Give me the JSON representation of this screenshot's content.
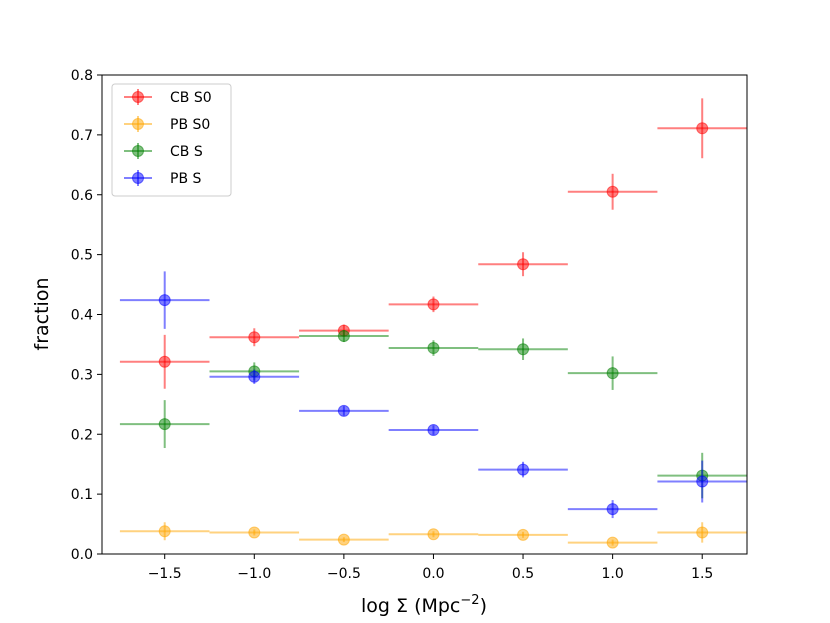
{
  "chart_data": {
    "type": "scatter",
    "title": "",
    "xlabel_main": "log Σ (Mpc",
    "xlabel_sup": "−2",
    "xlabel_close": ")",
    "ylabel": "fraction",
    "xlim": [
      -1.85,
      1.75
    ],
    "ylim": [
      0.0,
      0.8
    ],
    "xticks": [
      -1.5,
      -1.0,
      -0.5,
      0.0,
      0.5,
      1.0,
      1.5
    ],
    "xtick_labels": [
      "−1.5",
      "−1.0",
      "−0.5",
      "0.0",
      "0.5",
      "1.0",
      "1.5"
    ],
    "yticks": [
      0.0,
      0.1,
      0.2,
      0.3,
      0.4,
      0.5,
      0.6,
      0.7,
      0.8
    ],
    "ytick_labels": [
      "0.0",
      "0.1",
      "0.2",
      "0.3",
      "0.4",
      "0.5",
      "0.6",
      "0.7",
      "0.8"
    ],
    "x_bin_halfwidth": 0.25,
    "legend_position": "top-left",
    "x": [
      -1.5,
      -1.0,
      -0.5,
      0.0,
      0.5,
      1.0,
      1.5
    ],
    "series": [
      {
        "name": "CB S0",
        "color": "#ff0000",
        "values": [
          0.321,
          0.362,
          0.373,
          0.417,
          0.484,
          0.605,
          0.711
        ],
        "yerr": [
          0.045,
          0.015,
          0.01,
          0.013,
          0.02,
          0.03,
          0.05
        ]
      },
      {
        "name": "PB S0",
        "color": "#ffa500",
        "values": [
          0.038,
          0.036,
          0.024,
          0.033,
          0.032,
          0.019,
          0.036
        ],
        "yerr": [
          0.015,
          0.005,
          0.004,
          0.005,
          0.005,
          0.005,
          0.017
        ]
      },
      {
        "name": "CB S",
        "color": "#008000",
        "values": [
          0.217,
          0.305,
          0.364,
          0.344,
          0.342,
          0.302,
          0.131
        ],
        "yerr": [
          0.04,
          0.015,
          0.01,
          0.013,
          0.018,
          0.028,
          0.038
        ]
      },
      {
        "name": "PB S",
        "color": "#0000ff",
        "values": [
          0.424,
          0.296,
          0.239,
          0.207,
          0.141,
          0.075,
          0.121
        ],
        "yerr": [
          0.048,
          0.012,
          0.008,
          0.008,
          0.013,
          0.015,
          0.035
        ]
      }
    ]
  }
}
